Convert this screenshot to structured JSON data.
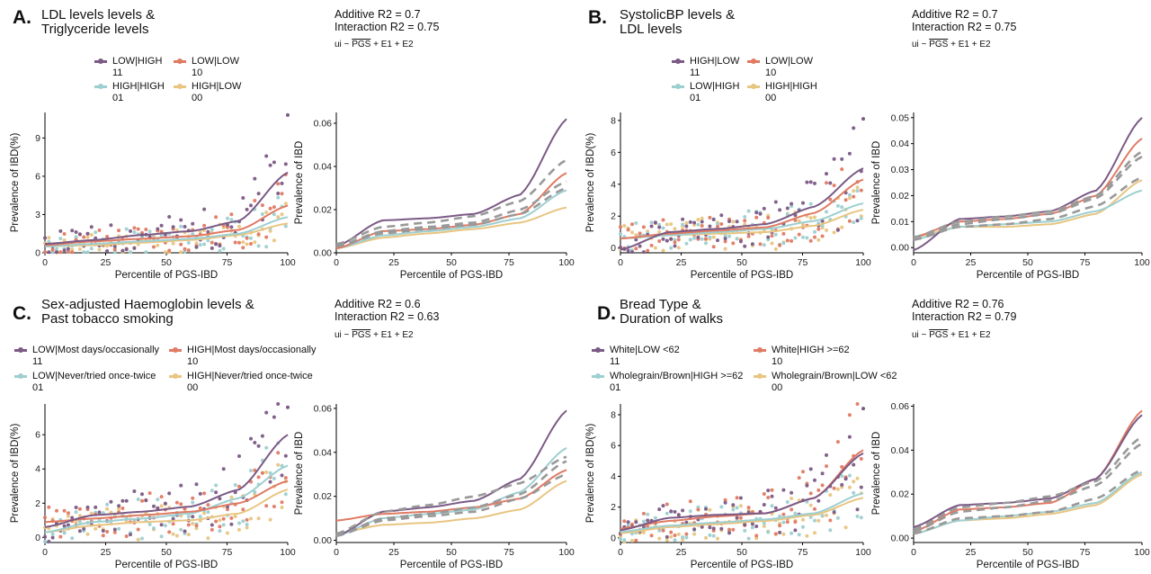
{
  "colors": {
    "c11": "#7b5a85",
    "c10": "#e07a63",
    "c01": "#9ecfd0",
    "c00": "#e8c581",
    "trend": "#999999"
  },
  "panels": [
    {
      "id": "A",
      "letter": "A.",
      "title_lines": [
        "LDL levels levels &",
        "Triglyceride levels"
      ],
      "additive": "Additive R2 = 0.7",
      "interaction": "Interaction R2 = 0.75",
      "formula": {
        "prefix": "ui ~ ",
        "pgs": "PGS",
        "suffix": " + E1 + E2"
      },
      "legend": [
        {
          "label": "LOW|HIGH",
          "code": "11",
          "color": "#7b5a85"
        },
        {
          "label": "LOW|LOW",
          "code": "10",
          "color": "#e07a63"
        },
        {
          "label": "HIGH|HIGH",
          "code": "01",
          "color": "#9ecfd0"
        },
        {
          "label": "HIGH|LOW",
          "code": "00",
          "color": "#e8c581"
        }
      ]
    },
    {
      "id": "B",
      "letter": "B.",
      "title_lines": [
        "SystolicBP levels &",
        "LDL levels"
      ],
      "additive": "Additive R2 = 0.7",
      "interaction": "Interaction R2 = 0.75",
      "formula": {
        "prefix": "ui ~ ",
        "pgs": "PGS",
        "suffix": " + E1 + E2"
      },
      "legend": [
        {
          "label": "HIGH|LOW",
          "code": "11",
          "color": "#7b5a85"
        },
        {
          "label": "LOW|LOW",
          "code": "10",
          "color": "#e07a63"
        },
        {
          "label": "LOW|HIGH",
          "code": "01",
          "color": "#9ecfd0"
        },
        {
          "label": "HIGH|HIGH",
          "code": "00",
          "color": "#e8c581"
        }
      ]
    },
    {
      "id": "C",
      "letter": "C.",
      "title_lines": [
        "Sex-adjusted Haemoglobin levels &",
        "Past tobacco smoking"
      ],
      "additive": "Additive R2 = 0.6",
      "interaction": "Interaction R2 = 0.63",
      "formula": {
        "prefix": "ui ~ ",
        "pgs": "PGS",
        "suffix": " + E1 + E2"
      },
      "legend": [
        {
          "label": "LOW|Most days/occasionally",
          "code": "11",
          "color": "#7b5a85"
        },
        {
          "label": "HIGH|Most days/occasionally",
          "code": "10",
          "color": "#e07a63"
        },
        {
          "label": "LOW|Never/tried once-twice",
          "code": "01",
          "color": "#9ecfd0"
        },
        {
          "label": "HIGH|Never/tried once-twice",
          "code": "00",
          "color": "#e8c581"
        }
      ]
    },
    {
      "id": "D",
      "letter": "D.",
      "title_lines": [
        "Bread Type &",
        "Duration of walks"
      ],
      "additive": "Additive R2 = 0.76",
      "interaction": "Interaction R2 = 0.79",
      "formula": {
        "prefix": "ui ~ ",
        "pgs": "PGS",
        "suffix": " + E1 + E2"
      },
      "legend": [
        {
          "label": "White|LOW <62",
          "code": "11",
          "color": "#7b5a85"
        },
        {
          "label": "White|HIGH >=62",
          "code": "10",
          "color": "#e07a63"
        },
        {
          "label": "Wholegrain/Brown|HIGH >=62",
          "code": "01",
          "color": "#9ecfd0"
        },
        {
          "label": "Wholegrain/Brown|LOW <62",
          "code": "00",
          "color": "#e8c581"
        }
      ]
    }
  ],
  "chart_data": [
    {
      "panel": "A",
      "subplot": "scatter",
      "type": "scatter",
      "xlabel": "Percentile of PGS-IBD",
      "ylabel": "Prevalence of IBD(%)",
      "xlim": [
        0,
        100
      ],
      "ylim": [
        0,
        11
      ],
      "xticks": [
        0,
        25,
        50,
        75,
        100
      ],
      "yticks": [
        0,
        3,
        6,
        9
      ],
      "curves": {
        "11": [
          0.7,
          1.0,
          1.4,
          1.7,
          2.5,
          6.3
        ],
        "10": [
          0.6,
          0.9,
          1.1,
          1.3,
          1.8,
          3.7
        ],
        "01": [
          0.5,
          0.7,
          0.9,
          1.1,
          1.5,
          2.8
        ],
        "00": [
          0.5,
          0.6,
          0.8,
          1.0,
          1.4,
          2.3
        ]
      },
      "curve_x": [
        0,
        20,
        40,
        60,
        80,
        100
      ],
      "outlier": {
        "x": 100,
        "y": 10.8
      }
    },
    {
      "panel": "A",
      "subplot": "trend",
      "type": "line",
      "xlabel": "Percentile of PGS-IBD",
      "ylabel": "Prevalence of IBD",
      "xlim": [
        0,
        100
      ],
      "ylim": [
        0,
        0.065
      ],
      "xticks": [
        0,
        25,
        50,
        75,
        100
      ],
      "yticks": [
        0.0,
        0.02,
        0.04,
        0.06
      ],
      "curve_x": [
        0,
        20,
        40,
        60,
        80,
        100
      ],
      "series": [
        {
          "name": "11",
          "values": [
            0.003,
            0.015,
            0.016,
            0.018,
            0.027,
            0.062
          ]
        },
        {
          "name": "10",
          "values": [
            0.002,
            0.01,
            0.011,
            0.013,
            0.018,
            0.037
          ]
        },
        {
          "name": "01",
          "values": [
            0.002,
            0.008,
            0.01,
            0.012,
            0.016,
            0.029
          ]
        },
        {
          "name": "00",
          "values": [
            0.002,
            0.007,
            0.009,
            0.011,
            0.014,
            0.021
          ]
        }
      ],
      "dashed": [
        {
          "values": [
            0.004,
            0.012,
            0.014,
            0.017,
            0.024,
            0.043
          ]
        },
        {
          "values": [
            0.003,
            0.01,
            0.012,
            0.014,
            0.02,
            0.033
          ]
        },
        {
          "values": [
            0.003,
            0.009,
            0.011,
            0.013,
            0.018,
            0.03
          ]
        }
      ]
    },
    {
      "panel": "B",
      "subplot": "scatter",
      "type": "scatter",
      "xlabel": "Percentile of PGS-IBD",
      "ylabel": "Prevalence of IBD(%)",
      "xlim": [
        0,
        100
      ],
      "ylim": [
        -0.3,
        8.5
      ],
      "xticks": [
        0,
        25,
        50,
        75,
        100
      ],
      "yticks": [
        0,
        2,
        4,
        6,
        8
      ],
      "curves": {
        "11": [
          -0.1,
          1.0,
          1.2,
          1.5,
          2.6,
          5.0
        ],
        "10": [
          0.6,
          0.9,
          1.1,
          1.3,
          2.2,
          4.3
        ],
        "01": [
          0.6,
          0.8,
          1.0,
          1.2,
          1.7,
          2.8
        ],
        "00": [
          0.6,
          0.8,
          0.9,
          1.0,
          1.4,
          2.4
        ]
      },
      "curve_x": [
        0,
        20,
        40,
        60,
        80,
        100
      ],
      "outlier": {
        "x": 100,
        "y": 8.1
      }
    },
    {
      "panel": "B",
      "subplot": "trend",
      "type": "line",
      "xlabel": "Percentile of PGS-IBD",
      "ylabel": "Prevalence of IBD",
      "xlim": [
        0,
        100
      ],
      "ylim": [
        -0.002,
        0.052
      ],
      "xticks": [
        0,
        25,
        50,
        75,
        100
      ],
      "yticks": [
        0.0,
        0.01,
        0.02,
        0.03,
        0.04,
        0.05
      ],
      "curve_x": [
        0,
        20,
        40,
        60,
        80,
        100
      ],
      "series": [
        {
          "name": "11",
          "values": [
            -0.001,
            0.011,
            0.012,
            0.014,
            0.022,
            0.05
          ]
        },
        {
          "name": "10",
          "values": [
            0.004,
            0.01,
            0.011,
            0.013,
            0.02,
            0.042
          ]
        },
        {
          "name": "01",
          "values": [
            0.003,
            0.008,
            0.009,
            0.01,
            0.014,
            0.022
          ]
        },
        {
          "name": "00",
          "values": [
            0.004,
            0.008,
            0.008,
            0.009,
            0.013,
            0.026
          ]
        }
      ],
      "dashed": [
        {
          "values": [
            0.004,
            0.01,
            0.012,
            0.014,
            0.02,
            0.037
          ]
        },
        {
          "values": [
            0.003,
            0.009,
            0.011,
            0.013,
            0.019,
            0.035
          ]
        },
        {
          "values": [
            0.003,
            0.008,
            0.009,
            0.011,
            0.016,
            0.027
          ]
        }
      ]
    },
    {
      "panel": "C",
      "subplot": "scatter",
      "type": "scatter",
      "xlabel": "Percentile of PGS-IBD",
      "ylabel": "Prevalence of IBD(%)",
      "xlim": [
        0,
        100
      ],
      "ylim": [
        -0.3,
        7.8
      ],
      "xticks": [
        0,
        25,
        50,
        75,
        100
      ],
      "yticks": [
        0,
        2,
        4,
        6
      ],
      "curves": {
        "11": [
          0.6,
          1.3,
          1.5,
          1.8,
          2.8,
          6.0
        ],
        "10": [
          0.9,
          1.1,
          1.3,
          1.5,
          2.0,
          3.3
        ],
        "01": [
          0.3,
          0.9,
          1.1,
          1.4,
          2.3,
          4.2
        ],
        "00": [
          0.3,
          0.7,
          0.9,
          1.0,
          1.4,
          2.8
        ]
      },
      "curve_x": [
        0,
        20,
        40,
        60,
        80,
        100
      ],
      "outlier": {
        "x": 100,
        "y": 7.6
      }
    },
    {
      "panel": "C",
      "subplot": "trend",
      "type": "line",
      "xlabel": "Percentile of PGS-IBD",
      "ylabel": "Prevalence of IBD",
      "xlim": [
        0,
        100
      ],
      "ylim": [
        -0.001,
        0.062
      ],
      "xticks": [
        0,
        25,
        50,
        75,
        100
      ],
      "yticks": [
        0.0,
        0.02,
        0.04,
        0.06
      ],
      "curve_x": [
        0,
        20,
        40,
        60,
        80,
        100
      ],
      "series": [
        {
          "name": "11",
          "values": [
            0.002,
            0.013,
            0.015,
            0.018,
            0.028,
            0.059
          ]
        },
        {
          "name": "10",
          "values": [
            0.009,
            0.012,
            0.013,
            0.015,
            0.019,
            0.032
          ]
        },
        {
          "name": "01",
          "values": [
            0.002,
            0.01,
            0.012,
            0.014,
            0.022,
            0.042
          ]
        },
        {
          "name": "00",
          "values": [
            0.003,
            0.007,
            0.008,
            0.01,
            0.014,
            0.027
          ]
        }
      ],
      "dashed": [
        {
          "values": [
            0.003,
            0.013,
            0.016,
            0.02,
            0.026,
            0.038
          ]
        },
        {
          "values": [
            0.002,
            0.01,
            0.012,
            0.015,
            0.021,
            0.036
          ]
        },
        {
          "values": [
            0.002,
            0.009,
            0.011,
            0.013,
            0.019,
            0.03
          ]
        }
      ]
    },
    {
      "panel": "D",
      "subplot": "scatter",
      "type": "scatter",
      "xlabel": "Percentile of PGS-IBD",
      "ylabel": "Prevalence of IBD(%)",
      "xlim": [
        0,
        100
      ],
      "ylim": [
        -0.3,
        8.7
      ],
      "xticks": [
        0,
        25,
        50,
        75,
        100
      ],
      "yticks": [
        0,
        2,
        4,
        6,
        8
      ],
      "curves": {
        "11": [
          0.5,
          1.3,
          1.5,
          1.6,
          2.6,
          5.5
        ],
        "10": [
          0.6,
          1.1,
          1.4,
          1.6,
          2.6,
          5.7
        ],
        "01": [
          0.4,
          0.8,
          1.0,
          1.2,
          1.6,
          2.9
        ],
        "00": [
          0.3,
          0.7,
          0.9,
          1.1,
          1.5,
          2.6
        ]
      },
      "curve_x": [
        0,
        20,
        40,
        60,
        80,
        100
      ],
      "outlier": {
        "x": 100,
        "y": 8.4
      }
    },
    {
      "panel": "D",
      "subplot": "trend",
      "type": "line",
      "xlabel": "Percentile of PGS-IBD",
      "ylabel": "Prevalence of IBD",
      "xlim": [
        0,
        100
      ],
      "ylim": [
        -0.002,
        0.061
      ],
      "xticks": [
        0,
        25,
        50,
        75,
        100
      ],
      "yticks": [
        0.0,
        0.02,
        0.04,
        0.06
      ],
      "curve_x": [
        0,
        20,
        40,
        60,
        80,
        100
      ],
      "series": [
        {
          "name": "11",
          "values": [
            0.005,
            0.015,
            0.016,
            0.018,
            0.027,
            0.056
          ]
        },
        {
          "name": "10",
          "values": [
            0.003,
            0.013,
            0.014,
            0.016,
            0.027,
            0.058
          ]
        },
        {
          "name": "01",
          "values": [
            0.002,
            0.008,
            0.01,
            0.012,
            0.016,
            0.03
          ]
        },
        {
          "name": "00",
          "values": [
            0.002,
            0.008,
            0.009,
            0.011,
            0.015,
            0.029
          ]
        }
      ],
      "dashed": [
        {
          "values": [
            0.004,
            0.014,
            0.016,
            0.019,
            0.026,
            0.046
          ]
        },
        {
          "values": [
            0.003,
            0.012,
            0.014,
            0.017,
            0.024,
            0.043
          ]
        },
        {
          "values": [
            0.002,
            0.009,
            0.01,
            0.012,
            0.018,
            0.031
          ]
        }
      ]
    }
  ]
}
